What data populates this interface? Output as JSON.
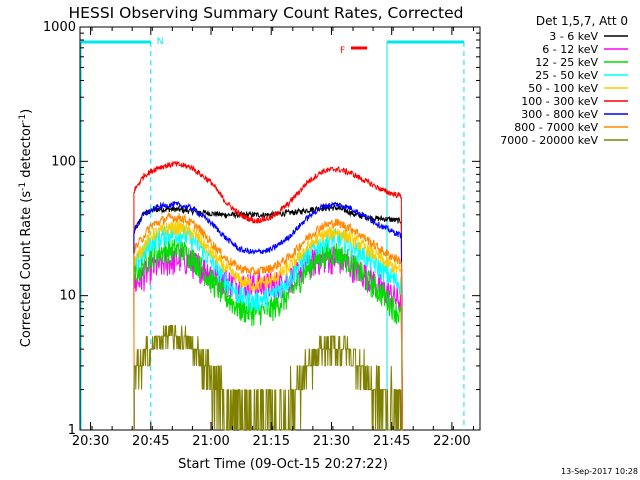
{
  "chart_data": {
    "type": "line",
    "title": "HESSI Observing Summary Count Rates, Corrected",
    "xlabel": "Start Time (09-Oct-15 20:27:22)",
    "ylabel_main": "Corrected Count Rate (s",
    "ylabel_sup1": "-1",
    "ylabel_mid": " detector",
    "ylabel_sup2": "-1",
    "ylabel_end": ")",
    "y_scale": "log",
    "xlim": [
      "20:27:22",
      "22:07:00"
    ],
    "ylim": [
      1,
      1000
    ],
    "x_ticks": [
      "20:30",
      "20:45",
      "21:00",
      "21:15",
      "21:30",
      "21:45",
      "22:00"
    ],
    "y_ticks": [
      "1",
      "10",
      "100",
      "1000"
    ],
    "legend_header": "Det 1,5,7, Att 0",
    "legend_position": "right",
    "footer_date": "13-Sep-2017 10:28",
    "data_start": "20:40:50",
    "data_end": "21:47:40",
    "series": [
      {
        "name": "3 - 6 keV",
        "color": "#000000",
        "values": [
          [
            20.68,
            30
          ],
          [
            20.72,
            41
          ],
          [
            20.78,
            44
          ],
          [
            20.85,
            44
          ],
          [
            20.95,
            42
          ],
          [
            21.05,
            40
          ],
          [
            21.15,
            40
          ],
          [
            21.25,
            40
          ],
          [
            21.3,
            41
          ],
          [
            21.36,
            42
          ],
          [
            21.42,
            44
          ],
          [
            21.47,
            45
          ],
          [
            21.52,
            45
          ],
          [
            21.56,
            43
          ],
          [
            21.6,
            40
          ],
          [
            21.66,
            38
          ],
          [
            21.74,
            37
          ],
          [
            21.79,
            36
          ]
        ]
      },
      {
        "name": "6 - 12 keV",
        "color": "#ff00ff",
        "values": [
          [
            20.68,
            12
          ],
          [
            20.75,
            16
          ],
          [
            20.82,
            18
          ],
          [
            20.88,
            19
          ],
          [
            20.94,
            17
          ],
          [
            21.0,
            15
          ],
          [
            21.06,
            13
          ],
          [
            21.12,
            12
          ],
          [
            21.18,
            12
          ],
          [
            21.25,
            12
          ],
          [
            21.32,
            13
          ],
          [
            21.4,
            17
          ],
          [
            21.46,
            19
          ],
          [
            21.52,
            19
          ],
          [
            21.58,
            17
          ],
          [
            21.65,
            14
          ],
          [
            21.72,
            11
          ],
          [
            21.79,
            9
          ]
        ]
      },
      {
        "name": "12 - 25 keV",
        "color": "#00dd00",
        "values": [
          [
            20.68,
            14
          ],
          [
            20.75,
            20
          ],
          [
            20.82,
            22
          ],
          [
            20.88,
            22
          ],
          [
            20.94,
            18
          ],
          [
            21.0,
            13
          ],
          [
            21.06,
            10
          ],
          [
            21.12,
            8
          ],
          [
            21.18,
            7.5
          ],
          [
            21.25,
            8
          ],
          [
            21.32,
            10
          ],
          [
            21.4,
            16
          ],
          [
            21.46,
            20
          ],
          [
            21.52,
            21
          ],
          [
            21.58,
            18
          ],
          [
            21.65,
            13
          ],
          [
            21.72,
            10
          ],
          [
            21.79,
            7
          ]
        ]
      },
      {
        "name": "25 - 50 keV",
        "color": "#00ffff",
        "values": [
          [
            20.68,
            16
          ],
          [
            20.75,
            25
          ],
          [
            20.82,
            29
          ],
          [
            20.88,
            29
          ],
          [
            20.94,
            25
          ],
          [
            21.0,
            18
          ],
          [
            21.06,
            13
          ],
          [
            21.12,
            10
          ],
          [
            21.18,
            9
          ],
          [
            21.25,
            10
          ],
          [
            21.32,
            13
          ],
          [
            21.4,
            20
          ],
          [
            21.46,
            25
          ],
          [
            21.52,
            27
          ],
          [
            21.58,
            24
          ],
          [
            21.65,
            19
          ],
          [
            21.72,
            15
          ],
          [
            21.79,
            12
          ]
        ]
      },
      {
        "name": "50 - 100 keV",
        "color": "#ffcc00",
        "values": [
          [
            20.68,
            18
          ],
          [
            20.75,
            28
          ],
          [
            20.82,
            32
          ],
          [
            20.88,
            32
          ],
          [
            20.94,
            28
          ],
          [
            21.0,
            21
          ],
          [
            21.06,
            16
          ],
          [
            21.12,
            13
          ],
          [
            21.18,
            12
          ],
          [
            21.25,
            13
          ],
          [
            21.32,
            16
          ],
          [
            21.4,
            23
          ],
          [
            21.46,
            28
          ],
          [
            21.52,
            30
          ],
          [
            21.58,
            27
          ],
          [
            21.65,
            22
          ],
          [
            21.72,
            18
          ],
          [
            21.79,
            15
          ]
        ]
      },
      {
        "name": "100 - 300 keV",
        "color": "#ff0000",
        "values": [
          [
            20.68,
            60
          ],
          [
            20.72,
            78
          ],
          [
            20.78,
            90
          ],
          [
            20.85,
            96
          ],
          [
            20.92,
            90
          ],
          [
            21.0,
            70
          ],
          [
            21.06,
            50
          ],
          [
            21.12,
            40
          ],
          [
            21.18,
            36
          ],
          [
            21.25,
            38
          ],
          [
            21.32,
            48
          ],
          [
            21.4,
            70
          ],
          [
            21.46,
            84
          ],
          [
            21.52,
            88
          ],
          [
            21.58,
            82
          ],
          [
            21.65,
            70
          ],
          [
            21.72,
            60
          ],
          [
            21.79,
            55
          ]
        ]
      },
      {
        "name": "300 - 800 keV",
        "color": "#0000ff",
        "values": [
          [
            20.68,
            30
          ],
          [
            20.72,
            40
          ],
          [
            20.78,
            46
          ],
          [
            20.85,
            48
          ],
          [
            20.92,
            45
          ],
          [
            21.0,
            35
          ],
          [
            21.06,
            27
          ],
          [
            21.12,
            22
          ],
          [
            21.18,
            21
          ],
          [
            21.25,
            22
          ],
          [
            21.32,
            27
          ],
          [
            21.4,
            38
          ],
          [
            21.46,
            46
          ],
          [
            21.52,
            48
          ],
          [
            21.58,
            45
          ],
          [
            21.65,
            38
          ],
          [
            21.72,
            32
          ],
          [
            21.79,
            28
          ]
        ]
      },
      {
        "name": "800 - 7000 keV",
        "color": "#ff8800",
        "values": [
          [
            20.68,
            22
          ],
          [
            20.75,
            33
          ],
          [
            20.82,
            38
          ],
          [
            20.88,
            38
          ],
          [
            20.94,
            33
          ],
          [
            21.0,
            25
          ],
          [
            21.06,
            19
          ],
          [
            21.12,
            16
          ],
          [
            21.18,
            15
          ],
          [
            21.25,
            16
          ],
          [
            21.32,
            19
          ],
          [
            21.4,
            27
          ],
          [
            21.46,
            33
          ],
          [
            21.52,
            35
          ],
          [
            21.58,
            32
          ],
          [
            21.65,
            26
          ],
          [
            21.72,
            21
          ],
          [
            21.79,
            18
          ]
        ]
      },
      {
        "name": "7000 - 20000 keV",
        "color": "#808000",
        "values": [
          [
            20.68,
            2.5
          ],
          [
            20.72,
            3.5
          ],
          [
            20.78,
            4.5
          ],
          [
            20.84,
            5
          ],
          [
            20.9,
            4.5
          ],
          [
            20.96,
            3.5
          ],
          [
            21.0,
            2.5
          ],
          [
            21.06,
            1.5
          ],
          [
            21.12,
            1.2
          ],
          [
            21.25,
            1.2
          ],
          [
            21.32,
            1.5
          ],
          [
            21.38,
            2.5
          ],
          [
            21.44,
            3.5
          ],
          [
            21.5,
            4.2
          ],
          [
            21.56,
            4
          ],
          [
            21.62,
            3
          ],
          [
            21.68,
            2
          ],
          [
            21.74,
            1.5
          ],
          [
            21.79,
            1.2
          ]
        ]
      }
    ],
    "annotations": {
      "n_label": "N",
      "f_label": "F",
      "night_lines": [
        "20:45",
        "21:43:50"
      ],
      "saa_lines": [
        "20:45",
        "22:03"
      ]
    }
  }
}
